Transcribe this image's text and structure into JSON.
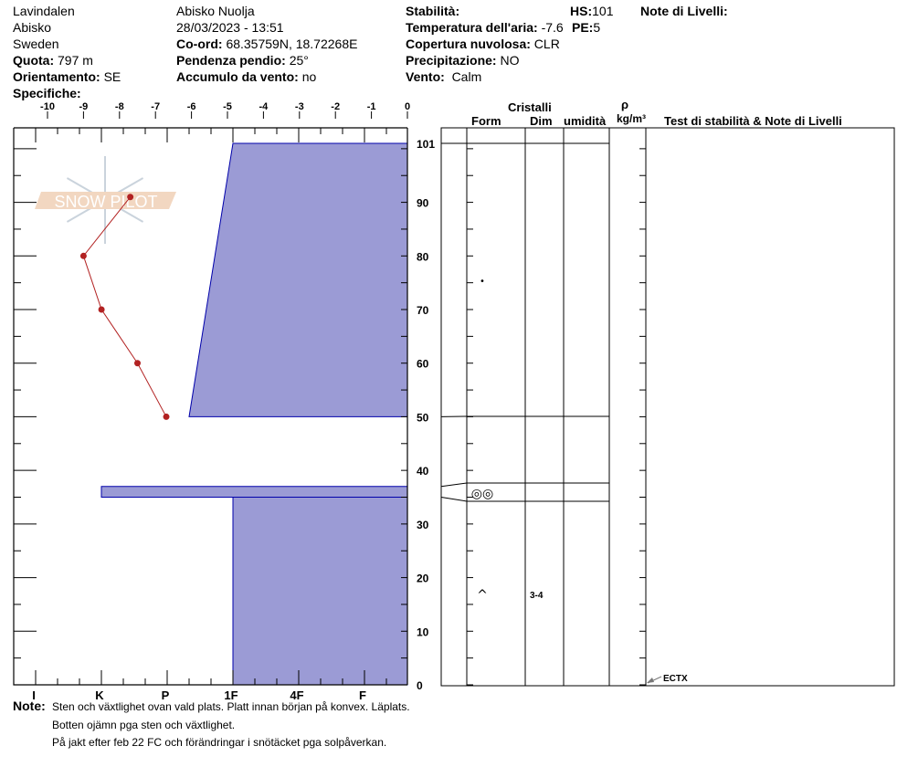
{
  "header": {
    "col1": {
      "location": "Lavindalen",
      "area": "Abisko",
      "country": "Sweden",
      "elevation_label": "Quota:",
      "elevation": "797 m",
      "aspect_label": "Orientamento:",
      "aspect": "SE",
      "specifics_label": "Specifiche:"
    },
    "col2": {
      "site": "Abisko Nuolja",
      "datetime": "28/03/2023 - 13:51",
      "coord_label": "Co-ord:",
      "coord": "68.35759N, 18.72268E",
      "slope_label": "Pendenza pendio:",
      "slope": "25°",
      "wind_loading_label": "Accumulo da vento:",
      "wind_loading": "no"
    },
    "col3": {
      "stability_label": "Stabilità:",
      "air_temp_label": "Temperatura dell'aria:",
      "air_temp": "-7.6",
      "sky_label": "Copertura nuvolosa:",
      "sky": "CLR",
      "precip_label": "Precipitazione:",
      "precip": "NO",
      "wind_label": "Vento:",
      "wind": "Calm",
      "hs_label": "HS:",
      "hs": "101",
      "pe_label": "PE:",
      "pe": "5"
    },
    "layer_notes_label": "Note di Livelli:"
  },
  "table_headers": {
    "crystals": "Cristalli",
    "form": "Form",
    "dim": "Dim",
    "moisture": "umidità",
    "rho": "ρ",
    "density_unit": "kg/m³",
    "tests": "Test di stabilità & Note di Livelli"
  },
  "notes": {
    "label": "Note:",
    "lines": [
      "Sten och växtlighet ovan vald plats. Platt innan början på konvex. Läplats.",
      "Botten ojämn pga sten och växtlighet.",
      "På jakt efter feb 22 FC och förändringar i snötäcket pga solpåverkan."
    ]
  },
  "logo_text": "SNOW PILOT",
  "colors": {
    "layer_fill": "#9b9bd5",
    "layer_stroke": "#0000aa",
    "temp_line": "#b22222"
  },
  "chart_data": {
    "type": "snow-profile",
    "temperature_axis": {
      "ticks": [
        "-10",
        "-9",
        "-8",
        "-7",
        "-6",
        "-5",
        "-4",
        "-3",
        "-2",
        "-1",
        "0"
      ],
      "range": [
        -10,
        0
      ]
    },
    "hardness_axis": {
      "ticks": [
        "I",
        "K",
        "P",
        "1F",
        "4F",
        "F"
      ]
    },
    "height_axis": {
      "ticks": [
        "0",
        "10",
        "20",
        "30",
        "40",
        "50",
        "60",
        "70",
        "80",
        "90",
        "101"
      ],
      "range": [
        0,
        101
      ]
    },
    "temperature_profile": [
      {
        "height": 91,
        "temp": -7.7
      },
      {
        "height": 80,
        "temp": -9.0
      },
      {
        "height": 70,
        "temp": -8.5
      },
      {
        "height": 60,
        "temp": -7.5
      },
      {
        "height": 50,
        "temp": -6.7
      }
    ],
    "layers": [
      {
        "top": 101,
        "bottom": 50,
        "hardness_top": "1F",
        "hardness_bottom": "P-1F",
        "form": "•",
        "dim": ""
      },
      {
        "top": 37,
        "bottom": 35,
        "hardness_top": "K",
        "hardness_bottom": "K",
        "form": "◎◎",
        "dim": ""
      },
      {
        "top": 35,
        "bottom": 0,
        "hardness_top": "1F",
        "hardness_bottom": "1F",
        "form": "^",
        "dim": "3-4"
      }
    ],
    "stability_tests": [
      {
        "height": 0,
        "label": "ECTX"
      }
    ]
  }
}
